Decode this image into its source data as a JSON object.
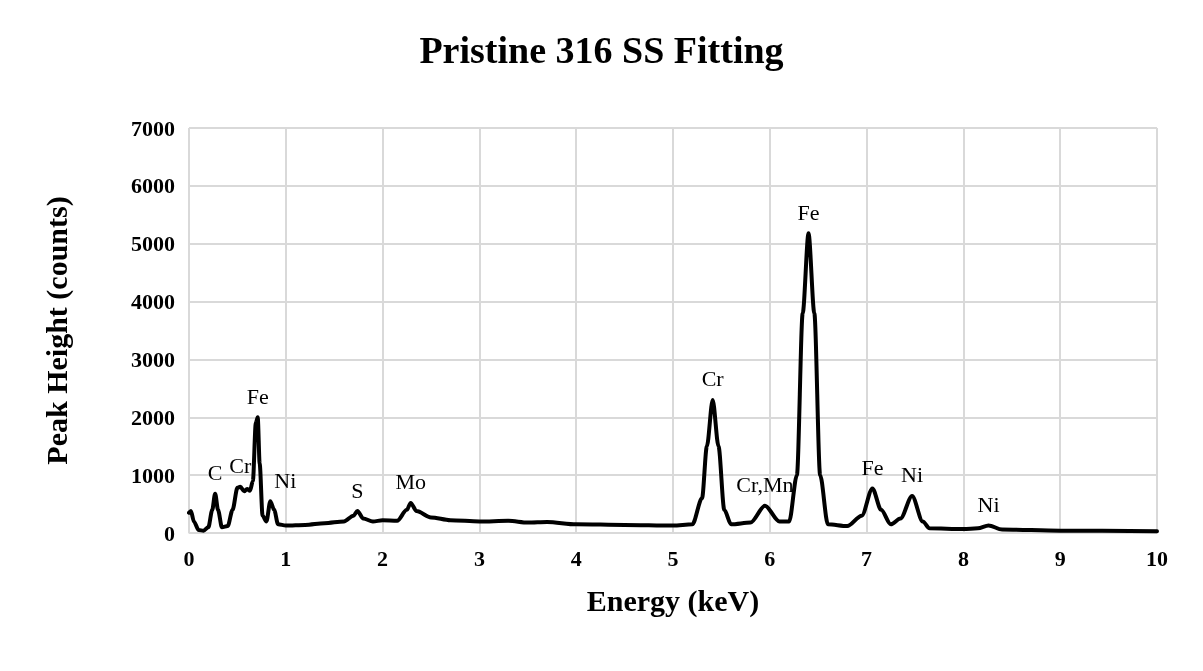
{
  "chart_data": {
    "type": "line",
    "title": "Pristine 316 SS Fitting",
    "xlabel": "Energy (keV)",
    "ylabel": "Peak Height (counts)",
    "xlim": [
      0,
      10
    ],
    "xticks": [
      0,
      1,
      2,
      3,
      4,
      5,
      6,
      7,
      8,
      9,
      10
    ],
    "ylim": [
      0,
      7000
    ],
    "yticks": [
      0,
      1000,
      2000,
      3000,
      4000,
      5000,
      6000,
      7000
    ],
    "grid": true,
    "marker": "none",
    "line_style": "solid",
    "series": [
      {
        "color": "#000000",
        "x": [
          0,
          0.02,
          0.05,
          0.1,
          0.15,
          0.2,
          0.24,
          0.27,
          0.3,
          0.34,
          0.4,
          0.45,
          0.5,
          0.53,
          0.57,
          0.6,
          0.63,
          0.66,
          0.69,
          0.71,
          0.73,
          0.76,
          0.8,
          0.84,
          0.88,
          0.92,
          1.0,
          1.2,
          1.4,
          1.6,
          1.7,
          1.74,
          1.8,
          1.9,
          2.0,
          2.15,
          2.25,
          2.29,
          2.35,
          2.5,
          2.7,
          3.0,
          3.3,
          3.5,
          3.7,
          4.0,
          4.5,
          5.0,
          5.2,
          5.3,
          5.35,
          5.41,
          5.47,
          5.53,
          5.6,
          5.8,
          5.95,
          6.1,
          6.2,
          6.28,
          6.34,
          6.4,
          6.46,
          6.52,
          6.6,
          6.8,
          6.95,
          7.06,
          7.15,
          7.25,
          7.35,
          7.47,
          7.58,
          7.65,
          8.0,
          8.15,
          8.26,
          8.4,
          9.0,
          10.0
        ],
        "values": [
          350,
          380,
          200,
          50,
          40,
          100,
          400,
          680,
          400,
          100,
          120,
          400,
          780,
          800,
          720,
          760,
          730,
          900,
          1900,
          2000,
          1200,
          300,
          200,
          550,
          400,
          150,
          130,
          140,
          170,
          200,
          300,
          380,
          250,
          200,
          220,
          210,
          400,
          520,
          380,
          270,
          220,
          200,
          210,
          180,
          190,
          150,
          140,
          130,
          150,
          600,
          1500,
          2300,
          1500,
          400,
          150,
          180,
          470,
          200,
          200,
          1000,
          3800,
          5180,
          3800,
          1000,
          150,
          120,
          300,
          770,
          400,
          150,
          250,
          640,
          200,
          80,
          70,
          80,
          130,
          60,
          40,
          30
        ]
      }
    ],
    "annotations": [
      {
        "text": "C",
        "x": 0.27,
        "y": 680
      },
      {
        "text": "Cr",
        "x": 0.53,
        "y": 800
      },
      {
        "text": "Fe",
        "x": 0.71,
        "y": 2000
      },
      {
        "text": "Ni",
        "x": 0.84,
        "y": 550
      },
      {
        "text": "S",
        "x": 1.74,
        "y": 380
      },
      {
        "text": "Mo",
        "x": 2.29,
        "y": 520
      },
      {
        "text": "Cr",
        "x": 5.41,
        "y": 2300
      },
      {
        "text": "Cr,Mn",
        "x": 5.95,
        "y": 470
      },
      {
        "text": "Fe",
        "x": 6.4,
        "y": 5180
      },
      {
        "text": "Fe",
        "x": 7.06,
        "y": 770
      },
      {
        "text": "Ni",
        "x": 7.47,
        "y": 640
      },
      {
        "text": "Ni",
        "x": 8.26,
        "y": 130
      }
    ]
  }
}
